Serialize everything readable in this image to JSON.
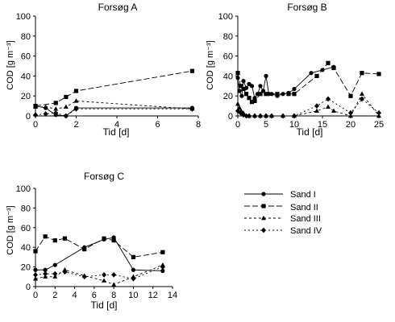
{
  "chart_data": [
    {
      "type": "line",
      "title": "Forsøg A",
      "xlabel": "Tid [d]",
      "ylabel": "COD [g m⁻³]",
      "xlim": [
        0,
        8
      ],
      "ylim": [
        0,
        100
      ],
      "xticks": [
        "0",
        "2",
        "4",
        "6",
        "8"
      ],
      "yticks": [
        "0",
        "20",
        "40",
        "60",
        "80",
        "100"
      ],
      "series": [
        {
          "name": "Sand I",
          "points": [
            [
              0,
              10
            ],
            [
              0.5,
              8
            ],
            [
              1,
              1
            ],
            [
              1.5,
              0
            ],
            [
              2,
              8
            ],
            [
              7.7,
              8
            ]
          ]
        },
        {
          "name": "Sand II",
          "points": [
            [
              0,
              10
            ],
            [
              1,
              13
            ],
            [
              1.5,
              19
            ],
            [
              2,
              25
            ],
            [
              7.7,
              45
            ]
          ]
        },
        {
          "name": "Sand III",
          "points": [
            [
              0,
              9
            ],
            [
              0.5,
              9
            ],
            [
              1,
              7
            ],
            [
              1.5,
              9
            ],
            [
              2,
              15
            ],
            [
              7.7,
              7
            ]
          ]
        },
        {
          "name": "Sand IV",
          "points": [
            [
              0,
              1
            ],
            [
              0.5,
              2
            ],
            [
              1,
              3
            ],
            [
              1.5,
              0
            ],
            [
              2,
              7
            ],
            [
              7.7,
              7
            ]
          ]
        }
      ]
    },
    {
      "type": "line",
      "title": "Forsøg B",
      "xlabel": "Tid [d]",
      "ylabel": "COD [g m⁻³]",
      "xlim": [
        0,
        25
      ],
      "ylim": [
        0,
        100
      ],
      "xticks": [
        "0",
        "5",
        "10",
        "15",
        "20",
        "25"
      ],
      "yticks": [
        "0",
        "20",
        "40",
        "60",
        "80",
        "100"
      ],
      "series": [
        {
          "name": "Sand I",
          "points": [
            [
              0,
              38
            ],
            [
              0.3,
              25
            ],
            [
              0.7,
              20
            ],
            [
              1,
              35
            ],
            [
              1.5,
              28
            ],
            [
              2,
              32
            ],
            [
              2.5,
              30
            ],
            [
              3,
              18
            ],
            [
              3.5,
              22
            ],
            [
              4,
              30
            ],
            [
              4.5,
              25
            ],
            [
              5,
              40
            ],
            [
              5.5,
              22
            ],
            [
              6,
              22
            ],
            [
              7,
              20
            ],
            [
              8,
              22
            ],
            [
              9,
              23
            ],
            [
              10,
              27
            ],
            [
              13,
              43
            ],
            [
              15,
              46
            ],
            [
              17,
              49
            ]
          ]
        },
        {
          "name": "Sand II",
          "points": [
            [
              0,
              43
            ],
            [
              0.5,
              30
            ],
            [
              1,
              27
            ],
            [
              1.5,
              22
            ],
            [
              2,
              18
            ],
            [
              2.5,
              14
            ],
            [
              3,
              15
            ],
            [
              4,
              22
            ],
            [
              5,
              22
            ],
            [
              7,
              22
            ],
            [
              9,
              22
            ],
            [
              10,
              22
            ],
            [
              14,
              40
            ],
            [
              16,
              53
            ],
            [
              17,
              48
            ],
            [
              20,
              20
            ],
            [
              22,
              43
            ],
            [
              25,
              42
            ]
          ]
        },
        {
          "name": "Sand III",
          "points": [
            [
              0,
              12
            ],
            [
              0.3,
              8
            ],
            [
              0.6,
              5
            ],
            [
              1,
              3
            ],
            [
              2,
              0
            ],
            [
              3,
              0
            ],
            [
              4,
              0
            ],
            [
              5,
              0
            ],
            [
              6,
              0
            ],
            [
              8,
              0
            ],
            [
              10,
              0
            ],
            [
              14,
              5
            ],
            [
              16,
              9
            ],
            [
              17,
              5
            ],
            [
              20,
              0
            ],
            [
              22,
              22
            ],
            [
              25,
              0
            ]
          ]
        },
        {
          "name": "Sand IV",
          "points": [
            [
              0,
              5
            ],
            [
              0.5,
              3
            ],
            [
              1,
              1
            ],
            [
              1.5,
              0
            ],
            [
              2,
              0
            ],
            [
              3,
              0
            ],
            [
              4,
              0
            ],
            [
              5,
              0
            ],
            [
              6,
              0
            ],
            [
              8,
              0
            ],
            [
              10,
              0
            ],
            [
              14,
              10
            ],
            [
              16,
              17
            ],
            [
              20,
              3
            ],
            [
              22,
              17
            ],
            [
              25,
              3
            ]
          ]
        }
      ]
    },
    {
      "type": "line",
      "title": "Forsøg C",
      "xlabel": "Tid [d]",
      "ylabel": "COD [g m⁻³]",
      "xlim": [
        0,
        14
      ],
      "ylim": [
        0,
        100
      ],
      "xticks": [
        "0",
        "2",
        "4",
        "6",
        "8",
        "10",
        "12",
        "14"
      ],
      "yticks": [
        "0",
        "20",
        "40",
        "60",
        "80",
        "100"
      ],
      "series": [
        {
          "name": "Sand I",
          "points": [
            [
              0,
              17
            ],
            [
              1,
              17
            ],
            [
              2,
              22
            ],
            [
              5,
              40
            ],
            [
              7,
              48
            ],
            [
              8,
              50
            ],
            [
              10,
              17
            ],
            [
              13,
              16
            ]
          ]
        },
        {
          "name": "Sand II",
          "points": [
            [
              0,
              36
            ],
            [
              1,
              51
            ],
            [
              2,
              47
            ],
            [
              3,
              49
            ],
            [
              5,
              38
            ],
            [
              7,
              49
            ],
            [
              8,
              47
            ],
            [
              10,
              30
            ],
            [
              13,
              35
            ]
          ]
        },
        {
          "name": "Sand III",
          "points": [
            [
              0,
              8
            ],
            [
              1,
              10
            ],
            [
              2,
              10
            ],
            [
              3,
              17
            ],
            [
              5,
              11
            ],
            [
              7,
              6
            ],
            [
              8,
              2
            ],
            [
              10,
              10
            ],
            [
              13,
              22
            ]
          ]
        },
        {
          "name": "Sand IV",
          "points": [
            [
              0,
              12
            ],
            [
              1,
              13
            ],
            [
              2,
              13
            ],
            [
              3,
              15
            ],
            [
              5,
              10
            ],
            [
              7,
              12
            ],
            [
              8,
              12
            ],
            [
              10,
              8
            ],
            [
              13,
              20
            ]
          ]
        }
      ]
    }
  ],
  "legend": [
    {
      "label": "Sand I",
      "marker": "circle",
      "dash": ""
    },
    {
      "label": "Sand II",
      "marker": "square",
      "dash": "7,3"
    },
    {
      "label": "Sand III",
      "marker": "triangle",
      "dash": "3,3"
    },
    {
      "label": "Sand IV",
      "marker": "diamond",
      "dash": "2,3"
    }
  ]
}
